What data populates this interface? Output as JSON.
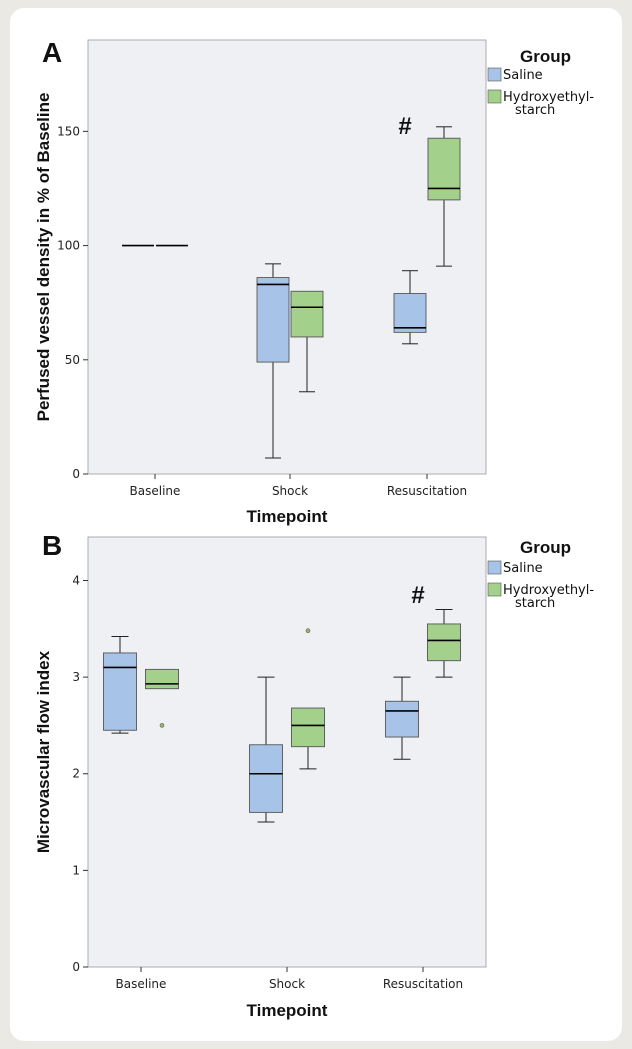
{
  "colors": {
    "plot_background": "#eef0f4",
    "saline": "#a7c4e8",
    "hydroxyethyl_starch": "#a3d08a",
    "box_stroke": "#222222",
    "card": "#ffffff",
    "page": "#ebe9e4"
  },
  "chart_data": [
    {
      "panel": "A",
      "type": "box",
      "xlabel": "Timepoint",
      "ylabel": "Perfused vessel density in % of Baseline",
      "ylim": [
        0,
        190
      ],
      "yticks": [
        "0",
        "50",
        "100",
        "150"
      ],
      "categories": [
        "Baseline",
        "Shock",
        "Resuscitation"
      ],
      "legend": {
        "title": "Group",
        "placement": "top-right",
        "entries": [
          "Saline",
          "Hydroxyethyl-",
          "starch"
        ]
      },
      "annotation": {
        "text": "#",
        "category": "Resuscitation"
      },
      "grid": false,
      "series": [
        {
          "name": "Saline",
          "boxes": [
            {
              "min": 100,
              "q1": 100,
              "median": 100,
              "q3": 100,
              "max": 100
            },
            {
              "min": 7,
              "q1": 49,
              "median": 83,
              "q3": 86,
              "max": 92
            },
            {
              "min": 57,
              "q1": 62,
              "median": 64,
              "q3": 79,
              "max": 89
            }
          ],
          "outliers": [
            [],
            [],
            []
          ]
        },
        {
          "name": "Hydroxyethyl-starch",
          "boxes": [
            {
              "min": 100,
              "q1": 100,
              "median": 100,
              "q3": 100,
              "max": 100
            },
            {
              "min": 36,
              "q1": 60,
              "median": 73,
              "q3": 80,
              "max": 80
            },
            {
              "min": 91,
              "q1": 120,
              "median": 125,
              "q3": 147,
              "max": 152
            }
          ],
          "outliers": [
            [],
            [],
            []
          ]
        }
      ]
    },
    {
      "panel": "B",
      "type": "box",
      "xlabel": "Timepoint",
      "ylabel": "Microvascular flow index",
      "ylim": [
        0,
        4.45
      ],
      "yticks": [
        "0",
        "1",
        "2",
        "3",
        "4"
      ],
      "categories": [
        "Baseline",
        "Shock",
        "Resuscitation"
      ],
      "legend": {
        "title": "Group",
        "placement": "top-right",
        "entries": [
          "Saline",
          "Hydroxyethyl-",
          "starch"
        ]
      },
      "annotation": {
        "text": "#",
        "category": "Resuscitation"
      },
      "grid": false,
      "series": [
        {
          "name": "Saline",
          "boxes": [
            {
              "min": 2.42,
              "q1": 2.45,
              "median": 3.1,
              "q3": 3.25,
              "max": 3.42
            },
            {
              "min": 1.5,
              "q1": 1.6,
              "median": 2.0,
              "q3": 2.3,
              "max": 3.0
            },
            {
              "min": 2.15,
              "q1": 2.38,
              "median": 2.65,
              "q3": 2.75,
              "max": 3.0
            }
          ],
          "outliers": [
            [],
            [],
            []
          ]
        },
        {
          "name": "Hydroxyethyl-starch",
          "boxes": [
            {
              "min": 2.88,
              "q1": 2.88,
              "median": 2.93,
              "q3": 3.08,
              "max": 3.08
            },
            {
              "min": 2.05,
              "q1": 2.28,
              "median": 2.5,
              "q3": 2.68,
              "max": 2.68
            },
            {
              "min": 3.0,
              "q1": 3.17,
              "median": 3.38,
              "q3": 3.55,
              "max": 3.7
            }
          ],
          "outliers": [
            [
              2.5
            ],
            [
              3.48
            ],
            []
          ]
        }
      ]
    }
  ]
}
